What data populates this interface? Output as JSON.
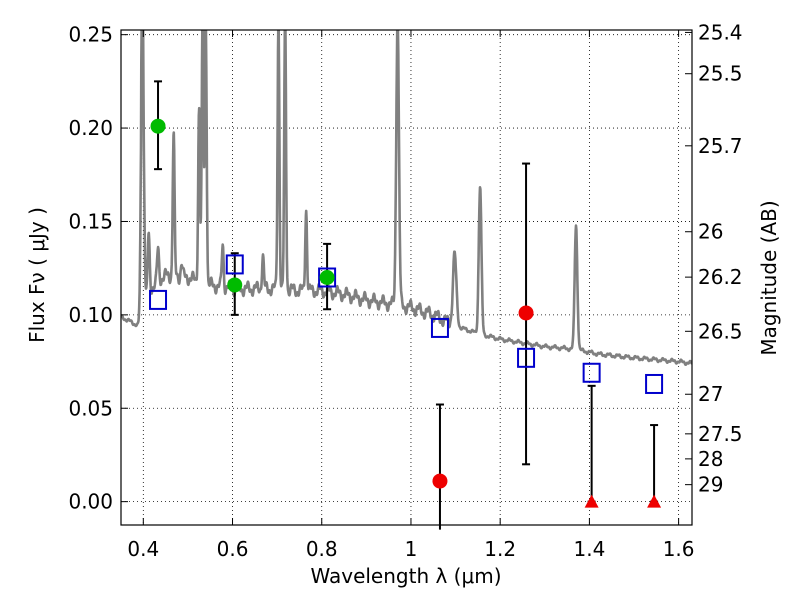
{
  "chart_data": {
    "type": "scatter",
    "xlabel": "Wavelength  λ (μm)",
    "ylabel": "Flux  Fν  ( μJy )",
    "ylabel_right": "Magnitude (AB)",
    "xlim": [
      0.35,
      1.63
    ],
    "ylim": [
      -0.0125,
      0.2525
    ],
    "grid": true,
    "x_ticks": [
      {
        "value": 0.4,
        "label": "0.4"
      },
      {
        "value": 0.6,
        "label": "0.6"
      },
      {
        "value": 0.8,
        "label": "0.8"
      },
      {
        "value": 1.0,
        "label": "1"
      },
      {
        "value": 1.2,
        "label": "1.2"
      },
      {
        "value": 1.4,
        "label": "1.4"
      },
      {
        "value": 1.6,
        "label": "1.6"
      }
    ],
    "y_ticks": [
      {
        "value": 0.0,
        "label": "0.00"
      },
      {
        "value": 0.05,
        "label": "0.05"
      },
      {
        "value": 0.1,
        "label": "0.10"
      },
      {
        "value": 0.15,
        "label": "0.15"
      },
      {
        "value": 0.2,
        "label": "0.20"
      },
      {
        "value": 0.25,
        "label": "0.25"
      }
    ],
    "mag_ticks": [
      {
        "value": 0.2512,
        "label": "25.4"
      },
      {
        "value": 0.2291,
        "label": "25.5"
      },
      {
        "value": 0.1905,
        "label": "25.7"
      },
      {
        "value": 0.1445,
        "label": "26"
      },
      {
        "value": 0.1202,
        "label": "26.2"
      },
      {
        "value": 0.0912,
        "label": "26.5"
      },
      {
        "value": 0.0575,
        "label": "27"
      },
      {
        "value": 0.0363,
        "label": "27.5"
      },
      {
        "value": 0.0229,
        "label": "28"
      },
      {
        "value": 0.0091,
        "label": "29"
      }
    ],
    "colors": {
      "spectrum": "#808080",
      "detected": "#00bb00",
      "nondetected": "#ee0000",
      "model": "#0000cc",
      "errorbar": "#000000"
    },
    "spectrum": {
      "name": "",
      "continuum": [
        [
          0.35,
          0.099
        ],
        [
          0.39,
          0.094
        ],
        [
          0.395,
          0.1
        ],
        [
          0.41,
          0.112
        ],
        [
          0.43,
          0.118
        ],
        [
          0.45,
          0.121
        ],
        [
          0.5,
          0.12
        ],
        [
          0.55,
          0.116
        ],
        [
          0.6,
          0.114
        ],
        [
          0.65,
          0.114
        ],
        [
          0.7,
          0.114
        ],
        [
          0.75,
          0.113
        ],
        [
          0.8,
          0.113
        ],
        [
          0.85,
          0.111
        ],
        [
          0.9,
          0.108
        ],
        [
          0.95,
          0.106
        ],
        [
          1.0,
          0.104
        ],
        [
          1.05,
          0.1
        ],
        [
          1.1,
          0.094
        ],
        [
          1.15,
          0.09
        ],
        [
          1.2,
          0.087
        ],
        [
          1.25,
          0.085
        ],
        [
          1.3,
          0.083
        ],
        [
          1.35,
          0.082
        ],
        [
          1.38,
          0.081
        ],
        [
          1.42,
          0.079
        ],
        [
          1.5,
          0.077
        ],
        [
          1.55,
          0.076
        ],
        [
          1.6,
          0.075
        ],
        [
          1.63,
          0.074
        ]
      ],
      "lines": [
        {
          "x": 0.398,
          "peak": 0.26,
          "w": 0.003
        },
        {
          "x": 0.412,
          "peak": 0.143,
          "w": 0.002
        },
        {
          "x": 0.433,
          "peak": 0.135,
          "w": 0.002
        },
        {
          "x": 0.468,
          "peak": 0.197,
          "w": 0.002
        },
        {
          "x": 0.486,
          "peak": 0.128,
          "w": 0.002
        },
        {
          "x": 0.525,
          "peak": 0.211,
          "w": 0.002
        },
        {
          "x": 0.533,
          "peak": 0.26,
          "w": 0.002
        },
        {
          "x": 0.54,
          "peak": 0.26,
          "w": 0.002
        },
        {
          "x": 0.578,
          "peak": 0.138,
          "w": 0.002
        },
        {
          "x": 0.668,
          "peak": 0.132,
          "w": 0.002
        },
        {
          "x": 0.703,
          "peak": 0.26,
          "w": 0.002
        },
        {
          "x": 0.718,
          "peak": 0.26,
          "w": 0.002
        },
        {
          "x": 0.765,
          "peak": 0.157,
          "w": 0.002
        },
        {
          "x": 0.97,
          "peak": 0.26,
          "w": 0.003
        },
        {
          "x": 1.098,
          "peak": 0.132,
          "w": 0.004
        },
        {
          "x": 1.155,
          "peak": 0.169,
          "w": 0.003
        },
        {
          "x": 1.37,
          "peak": 0.148,
          "w": 0.003
        }
      ]
    },
    "model": {
      "name": "",
      "x": [
        0.433,
        0.605,
        0.812,
        1.065,
        1.258,
        1.405,
        1.545
      ],
      "y": [
        0.108,
        0.127,
        0.12,
        0.093,
        0.077,
        0.069,
        0.063
      ]
    },
    "detected": {
      "name": "",
      "x": [
        0.433,
        0.605,
        0.812
      ],
      "y": [
        0.201,
        0.116,
        0.12
      ],
      "err_low": [
        0.178,
        0.1,
        0.103
      ],
      "err_high": [
        0.225,
        0.133,
        0.138
      ]
    },
    "nondetected": {
      "name": "",
      "x": [
        1.065,
        1.258
      ],
      "y": [
        0.011,
        0.101
      ],
      "err_low": [
        -0.015,
        0.02
      ],
      "err_high": [
        0.052,
        0.181
      ]
    },
    "upper_limits": {
      "name": "",
      "x": [
        1.405,
        1.545
      ],
      "y": [
        0.0,
        0.0
      ],
      "err_high": [
        0.062,
        0.041
      ]
    }
  }
}
